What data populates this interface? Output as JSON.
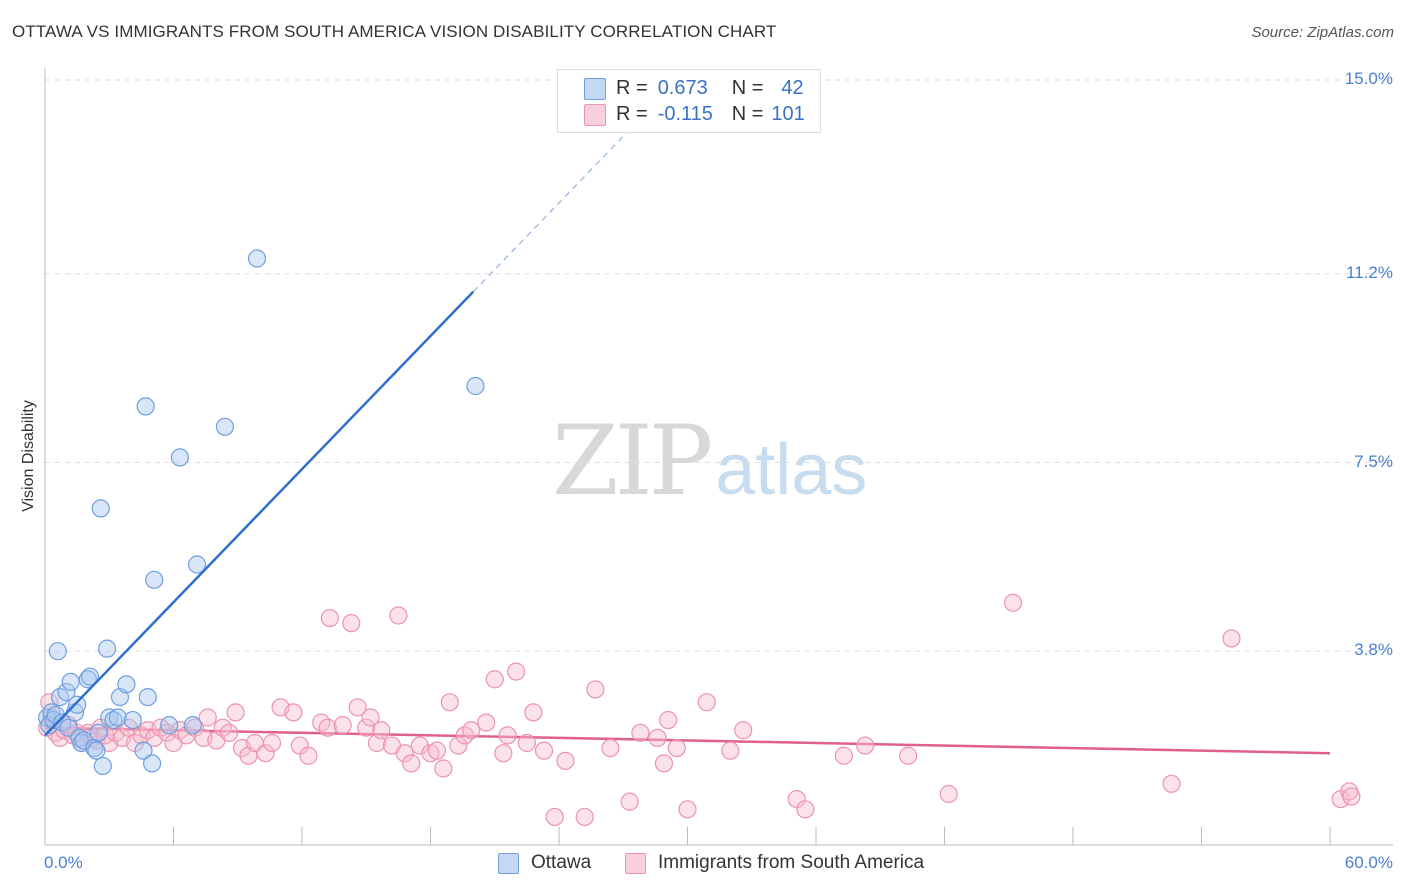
{
  "title": "OTTAWA VS IMMIGRANTS FROM SOUTH AMERICA VISION DISABILITY CORRELATION CHART",
  "source": "Source: ZipAtlas.com",
  "watermark": {
    "zip": "ZIP",
    "atlas": "atlas"
  },
  "colors": {
    "ottawa_fill": "#a9c8f0",
    "ottawa_stroke": "#6f9fe0",
    "ottawa_line": "#2f6fd0",
    "imm_fill": "#f6bccd",
    "imm_stroke": "#ec93b0",
    "imm_line": "#e0608a",
    "tick_text": "#4a7fd0",
    "grid": "#dddddd"
  },
  "legend_top": {
    "rows": [
      {
        "r_label": "R =",
        "r_value": "0.673",
        "n_label": "N =",
        "n_value": "42"
      },
      {
        "r_label": "R =",
        "r_value": "-0.115",
        "n_label": "N =",
        "n_value": "101"
      }
    ]
  },
  "legend_bottom": {
    "ottawa": "Ottawa",
    "immigrants": "Immigrants from South America"
  },
  "chart_data": {
    "type": "scatter",
    "title": "OTTAWA VS IMMIGRANTS FROM SOUTH AMERICA VISION DISABILITY CORRELATION CHART",
    "xlabel": "",
    "ylabel": "Vision Disability",
    "xlim": [
      0,
      60
    ],
    "ylim": [
      0,
      15.0
    ],
    "x_tick_labels": [
      "0.0%",
      "60.0%"
    ],
    "y_ticks": [
      {
        "value": 3.8,
        "label": "3.8%"
      },
      {
        "value": 7.5,
        "label": "7.5%"
      },
      {
        "value": 11.2,
        "label": "11.2%"
      },
      {
        "value": 15.0,
        "label": "15.0%"
      }
    ],
    "grid": true,
    "legend_position": "top-center",
    "series": [
      {
        "name": "Ottawa",
        "r": 0.673,
        "n": 42,
        "trend": {
          "x0": 0.0,
          "y0": 2.15,
          "x1": 20.0,
          "y1": 10.85,
          "x_dash_end": 27.8
        },
        "points": [
          [
            0.1,
            2.5
          ],
          [
            0.2,
            2.35
          ],
          [
            0.3,
            2.6
          ],
          [
            0.4,
            2.45
          ],
          [
            0.5,
            2.55
          ],
          [
            0.6,
            3.8
          ],
          [
            0.7,
            2.9
          ],
          [
            0.8,
            2.4
          ],
          [
            1.0,
            3.0
          ],
          [
            1.1,
            2.3
          ],
          [
            1.2,
            3.2
          ],
          [
            1.4,
            2.6
          ],
          [
            1.5,
            2.75
          ],
          [
            1.6,
            2.1
          ],
          [
            1.7,
            2.0
          ],
          [
            1.8,
            2.05
          ],
          [
            2.0,
            3.25
          ],
          [
            2.1,
            3.3
          ],
          [
            2.3,
            1.9
          ],
          [
            2.4,
            1.85
          ],
          [
            2.5,
            2.2
          ],
          [
            2.6,
            6.6
          ],
          [
            2.7,
            1.55
          ],
          [
            2.9,
            3.85
          ],
          [
            3.0,
            2.5
          ],
          [
            3.2,
            2.45
          ],
          [
            3.4,
            2.5
          ],
          [
            3.5,
            2.9
          ],
          [
            3.8,
            3.15
          ],
          [
            4.1,
            2.45
          ],
          [
            4.6,
            1.85
          ],
          [
            4.7,
            8.6
          ],
          [
            4.8,
            2.9
          ],
          [
            5.0,
            1.6
          ],
          [
            5.1,
            5.2
          ],
          [
            5.8,
            2.35
          ],
          [
            6.3,
            7.6
          ],
          [
            6.9,
            2.35
          ],
          [
            7.1,
            5.5
          ],
          [
            8.4,
            8.2
          ],
          [
            9.9,
            11.5
          ],
          [
            20.1,
            9.0
          ]
        ]
      },
      {
        "name": "Immigrants from South America",
        "r": -0.115,
        "n": 101,
        "trend": {
          "x0": 0.0,
          "y0": 2.3,
          "x1": 60.0,
          "y1": 1.8
        },
        "points": [
          [
            0.1,
            2.3
          ],
          [
            0.2,
            2.8
          ],
          [
            0.3,
            2.5
          ],
          [
            0.5,
            2.2
          ],
          [
            0.7,
            2.1
          ],
          [
            0.9,
            2.25
          ],
          [
            1.1,
            2.35
          ],
          [
            1.3,
            2.15
          ],
          [
            1.5,
            2.2
          ],
          [
            1.7,
            2.0
          ],
          [
            2.0,
            2.2
          ],
          [
            2.2,
            2.1
          ],
          [
            2.4,
            2.05
          ],
          [
            2.6,
            2.3
          ],
          [
            2.8,
            2.15
          ],
          [
            3.0,
            2.0
          ],
          [
            3.3,
            2.2
          ],
          [
            3.6,
            2.1
          ],
          [
            3.9,
            2.3
          ],
          [
            4.2,
            2.0
          ],
          [
            4.5,
            2.15
          ],
          [
            4.8,
            2.25
          ],
          [
            5.1,
            2.1
          ],
          [
            5.4,
            2.3
          ],
          [
            5.7,
            2.2
          ],
          [
            6.0,
            2.0
          ],
          [
            6.3,
            2.25
          ],
          [
            6.6,
            2.15
          ],
          [
            7.0,
            2.3
          ],
          [
            7.4,
            2.1
          ],
          [
            7.6,
            2.5
          ],
          [
            8.0,
            2.05
          ],
          [
            8.3,
            2.3
          ],
          [
            8.6,
            2.2
          ],
          [
            8.9,
            2.6
          ],
          [
            9.2,
            1.9
          ],
          [
            9.5,
            1.75
          ],
          [
            9.8,
            2.0
          ],
          [
            10.3,
            1.8
          ],
          [
            10.6,
            2.0
          ],
          [
            11.0,
            2.7
          ],
          [
            11.6,
            2.6
          ],
          [
            11.9,
            1.95
          ],
          [
            12.3,
            1.75
          ],
          [
            12.9,
            2.4
          ],
          [
            13.2,
            2.3
          ],
          [
            13.3,
            4.45
          ],
          [
            13.9,
            2.35
          ],
          [
            14.3,
            4.35
          ],
          [
            14.6,
            2.7
          ],
          [
            15.0,
            2.3
          ],
          [
            15.2,
            2.5
          ],
          [
            15.5,
            2.0
          ],
          [
            15.7,
            2.25
          ],
          [
            16.2,
            1.95
          ],
          [
            16.5,
            4.5
          ],
          [
            16.8,
            1.8
          ],
          [
            17.1,
            1.6
          ],
          [
            17.5,
            1.95
          ],
          [
            18.0,
            1.8
          ],
          [
            18.3,
            1.85
          ],
          [
            18.6,
            1.5
          ],
          [
            18.9,
            2.8
          ],
          [
            19.3,
            1.95
          ],
          [
            19.6,
            2.15
          ],
          [
            19.9,
            2.25
          ],
          [
            20.6,
            2.4
          ],
          [
            21.0,
            3.25
          ],
          [
            21.4,
            1.8
          ],
          [
            21.6,
            2.15
          ],
          [
            22.0,
            3.4
          ],
          [
            22.5,
            2.0
          ],
          [
            22.8,
            2.6
          ],
          [
            23.3,
            1.85
          ],
          [
            23.8,
            0.55
          ],
          [
            24.3,
            1.65
          ],
          [
            25.2,
            0.55
          ],
          [
            25.7,
            3.05
          ],
          [
            26.4,
            1.9
          ],
          [
            27.3,
            0.85
          ],
          [
            27.8,
            2.2
          ],
          [
            28.6,
            2.1
          ],
          [
            28.9,
            1.6
          ],
          [
            29.1,
            2.45
          ],
          [
            29.5,
            1.9
          ],
          [
            30.0,
            0.7
          ],
          [
            30.9,
            2.8
          ],
          [
            32.0,
            1.85
          ],
          [
            32.6,
            2.25
          ],
          [
            35.1,
            0.9
          ],
          [
            35.5,
            0.7
          ],
          [
            37.3,
            1.75
          ],
          [
            38.3,
            1.95
          ],
          [
            40.3,
            1.75
          ],
          [
            42.2,
            1.0
          ],
          [
            45.2,
            4.75
          ],
          [
            52.6,
            1.2
          ],
          [
            55.4,
            4.05
          ],
          [
            60.5,
            0.9
          ],
          [
            60.9,
            1.05
          ],
          [
            61.0,
            0.95
          ]
        ]
      }
    ]
  }
}
